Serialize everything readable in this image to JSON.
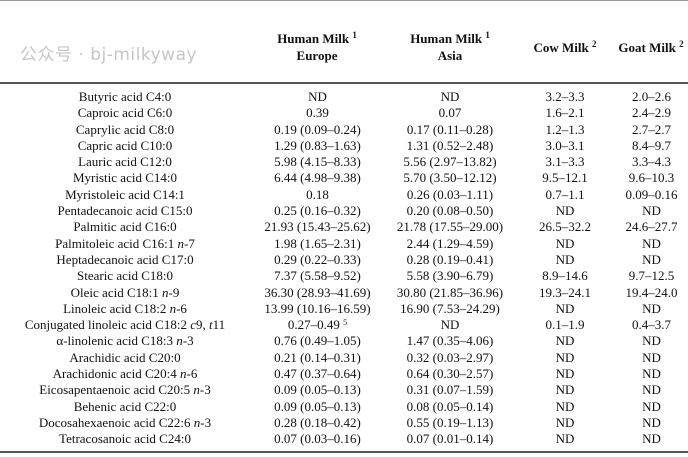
{
  "headers": [
    {
      "line1": "Human Milk",
      "sup": "1",
      "line2": "Europe"
    },
    {
      "line1": "Human Milk",
      "sup": "1",
      "line2": "Asia"
    },
    {
      "line1": "Cow Milk",
      "sup": "2",
      "line2": ""
    },
    {
      "line1": "Goat Milk",
      "sup": "2",
      "line2": ""
    }
  ],
  "rows": [
    {
      "name": [
        [
          "Butyric acid C4:0",
          false
        ]
      ],
      "europe": "ND",
      "asia": "ND",
      "cow": "3.2–3.3",
      "goat": "2.0–2.6"
    },
    {
      "name": [
        [
          "Caproic acid C6:0",
          false
        ]
      ],
      "europe": "0.39",
      "asia": "0.07",
      "cow": "1.6–2.1",
      "goat": "2.4–2.9"
    },
    {
      "name": [
        [
          "Caprylic acid C8:0",
          false
        ]
      ],
      "europe": "0.19 (0.09–0.24)",
      "asia": "0.17 (0.11–0.28)",
      "cow": "1.2–1.3",
      "goat": "2.7–2.7"
    },
    {
      "name": [
        [
          "Capric acid C10:0",
          false
        ]
      ],
      "europe": "1.29 (0.83–1.63)",
      "asia": "1.31 (0.52–2.48)",
      "cow": "3.0–3.1",
      "goat": "8.4–9.7"
    },
    {
      "name": [
        [
          "Lauric acid C12:0",
          false
        ]
      ],
      "europe": "5.98 (4.15–8.33)",
      "asia": "5.56 (2.97–13.82)",
      "cow": "3.1–3.3",
      "goat": "3.3–4.3"
    },
    {
      "name": [
        [
          "Myristic acid C14:0",
          false
        ]
      ],
      "europe": "6.44 (4.98–9.38)",
      "asia": "5.70 (3.50–12.12)",
      "cow": "9.5–12.1",
      "goat": "9.6–10.3"
    },
    {
      "name": [
        [
          "Myristoleic acid C14:1",
          false
        ]
      ],
      "europe": "0.18",
      "asia": "0.26 (0.03–1.11)",
      "cow": "0.7–1.1",
      "goat": "0.09–0.16"
    },
    {
      "name": [
        [
          "Pentadecanoic acid C15:0",
          false
        ]
      ],
      "europe": "0.25 (0.16–0.32)",
      "asia": "0.20 (0.08–0.50)",
      "cow": "ND",
      "goat": "ND"
    },
    {
      "name": [
        [
          "Palmitic acid C16:0",
          false
        ]
      ],
      "europe": "21.93 (15.43–25.62)",
      "asia": "21.78 (17.55–29.00)",
      "cow": "26.5–32.2",
      "goat": "24.6–27.7"
    },
    {
      "name": [
        [
          "Palmitoleic acid C16:1 ",
          false
        ],
        [
          "n",
          true
        ],
        [
          "-7",
          false
        ]
      ],
      "europe": "1.98 (1.65–2.31)",
      "asia": "2.44 (1.29–4.59)",
      "cow": "ND",
      "goat": "ND"
    },
    {
      "name": [
        [
          "Heptadecanoic acid C17:0",
          false
        ]
      ],
      "europe": "0.29 (0.22–0.33)",
      "asia": "0.28 (0.19–0.41)",
      "cow": "ND",
      "goat": "ND"
    },
    {
      "name": [
        [
          "Stearic acid C18:0",
          false
        ]
      ],
      "europe": "7.37 (5.58–9.52)",
      "asia": "5.58 (3.90–6.79)",
      "cow": "8.9–14.6",
      "goat": "9.7–12.5"
    },
    {
      "name": [
        [
          "Oleic acid C18:1 ",
          false
        ],
        [
          "n",
          true
        ],
        [
          "-9",
          false
        ]
      ],
      "europe": "36.30 (28.93–41.69)",
      "asia": "30.80 (21.85–36.96)",
      "cow": "19.3–24.1",
      "goat": "19.4–24.0"
    },
    {
      "name": [
        [
          "Linoleic acid C18:2 ",
          false
        ],
        [
          "n",
          true
        ],
        [
          "-6",
          false
        ]
      ],
      "europe": "13.99 (10.16–16.59)",
      "asia": "16.90 (7.53–24.29)",
      "cow": "ND",
      "goat": "ND"
    },
    {
      "name": [
        [
          "Conjugated linoleic acid C18:2 ",
          false
        ],
        [
          "c",
          true
        ],
        [
          "9, ",
          false
        ],
        [
          "t",
          true
        ],
        [
          "11",
          false
        ]
      ],
      "europe": "0.27–0.49",
      "europe_sup": "5",
      "asia": "ND",
      "cow": "0.1–1.9",
      "goat": "0.4–3.7"
    },
    {
      "name": [
        [
          "α-linolenic acid C18:3 ",
          false
        ],
        [
          "n",
          true
        ],
        [
          "-3",
          false
        ]
      ],
      "europe": "0.76 (0.49–1.05)",
      "asia": "1.47 (0.35–4.06)",
      "cow": "ND",
      "goat": "ND"
    },
    {
      "name": [
        [
          "Arachidic acid C20:0",
          false
        ]
      ],
      "europe": "0.21 (0.14–0.31)",
      "asia": "0.32 (0.03–2.97)",
      "cow": "ND",
      "goat": "ND"
    },
    {
      "name": [
        [
          "Arachidonic acid C20:4 ",
          false
        ],
        [
          "n",
          true
        ],
        [
          "-6",
          false
        ]
      ],
      "europe": "0.47 (0.37–0.64)",
      "asia": "0.64 (0.30–2.57)",
      "cow": "ND",
      "goat": "ND"
    },
    {
      "name": [
        [
          "Eicosapentaenoic acid C20:5 ",
          false
        ],
        [
          "n",
          true
        ],
        [
          "-3",
          false
        ]
      ],
      "europe": "0.09 (0.05–0.13)",
      "asia": "0.31 (0.07–1.59)",
      "cow": "ND",
      "goat": "ND"
    },
    {
      "name": [
        [
          "Behenic acid C22:0",
          false
        ]
      ],
      "europe": "0.09 (0.05–0.13)",
      "asia": "0.08 (0.05–0.14)",
      "cow": "ND",
      "goat": "ND"
    },
    {
      "name": [
        [
          "Docosahexaenoic acid C22:6 ",
          false
        ],
        [
          "n",
          true
        ],
        [
          "-3",
          false
        ]
      ],
      "europe": "0.28 (0.18–0.42)",
      "asia": "0.55 (0.19–1.13)",
      "cow": "ND",
      "goat": "ND"
    },
    {
      "name": [
        [
          "Tetracosanoic acid C24:0",
          false
        ]
      ],
      "europe": "0.07 (0.03–0.16)",
      "asia": "0.07 (0.01–0.14)",
      "cow": "ND",
      "goat": "ND"
    }
  ],
  "watermark": "公众号 · bj-milkyway"
}
